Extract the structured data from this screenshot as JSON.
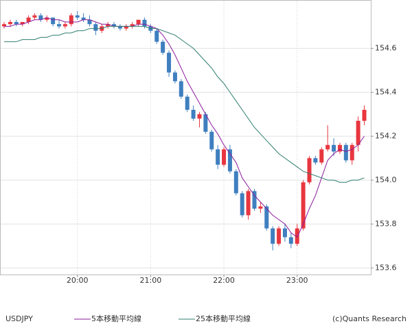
{
  "chart_data": {
    "type": "candlestick",
    "symbol": "USDJPY",
    "copyright": "(c)Quants Research",
    "categories": [
      null,
      null,
      null,
      null,
      null,
      null,
      null,
      null,
      null,
      null,
      null,
      null,
      "20:00",
      null,
      null,
      null,
      null,
      null,
      null,
      null,
      null,
      null,
      null,
      null,
      "21:00",
      null,
      null,
      null,
      null,
      null,
      null,
      null,
      null,
      null,
      null,
      null,
      "22:00",
      null,
      null,
      null,
      null,
      null,
      null,
      null,
      null,
      null,
      null,
      null,
      "23:00",
      null,
      null,
      null,
      null,
      null,
      null,
      null,
      null,
      null,
      null,
      null
    ],
    "open": [
      154.7,
      154.71,
      154.72,
      154.71,
      154.72,
      154.74,
      154.75,
      154.73,
      154.74,
      154.71,
      154.7,
      154.71,
      154.75,
      154.74,
      154.73,
      154.71,
      154.68,
      154.7,
      154.71,
      154.7,
      154.69,
      154.7,
      154.71,
      154.73,
      154.7,
      154.68,
      154.63,
      154.58,
      154.49,
      154.45,
      154.38,
      154.32,
      154.28,
      154.3,
      154.22,
      154.14,
      154.07,
      154.14,
      154.04,
      153.94,
      153.84,
      153.95,
      153.87,
      153.88,
      153.78,
      153.71,
      153.78,
      153.74,
      153.71,
      153.78,
      153.99,
      154.1,
      154.08,
      154.14,
      154.16,
      154.13,
      154.16,
      154.09,
      154.16,
      154.27
    ],
    "high": [
      154.72,
      154.73,
      154.73,
      154.72,
      154.75,
      154.76,
      154.76,
      154.75,
      154.74,
      154.73,
      154.72,
      154.76,
      154.77,
      154.76,
      154.75,
      154.72,
      154.71,
      154.72,
      154.72,
      154.71,
      154.71,
      154.72,
      154.73,
      154.74,
      154.71,
      154.69,
      154.64,
      154.59,
      154.5,
      154.46,
      154.39,
      154.34,
      154.31,
      154.31,
      154.23,
      154.16,
      154.15,
      154.16,
      154.05,
      153.95,
      153.96,
      153.96,
      153.9,
      153.89,
      153.79,
      153.79,
      153.8,
      153.76,
      153.8,
      154.0,
      154.11,
      154.11,
      154.15,
      154.25,
      154.19,
      154.17,
      154.17,
      154.17,
      154.29,
      154.34
    ],
    "low": [
      154.69,
      154.7,
      154.7,
      154.7,
      154.71,
      154.73,
      154.72,
      154.72,
      154.7,
      154.69,
      154.69,
      154.7,
      154.73,
      154.72,
      154.7,
      154.66,
      154.67,
      154.69,
      154.69,
      154.68,
      154.68,
      154.69,
      154.7,
      154.69,
      154.67,
      154.62,
      154.57,
      154.47,
      154.44,
      154.37,
      154.31,
      154.27,
      154.24,
      154.21,
      154.13,
      154.05,
      154.06,
      154.03,
      153.93,
      153.83,
      153.82,
      153.86,
      153.85,
      153.77,
      153.68,
      153.7,
      153.72,
      153.69,
      153.7,
      153.77,
      153.98,
      154.07,
      154.07,
      154.13,
      154.11,
      154.12,
      154.08,
      154.07,
      154.13,
      154.25
    ],
    "close": [
      154.71,
      154.72,
      154.71,
      154.72,
      154.74,
      154.75,
      154.73,
      154.74,
      154.71,
      154.7,
      154.71,
      154.75,
      154.74,
      154.73,
      154.71,
      154.68,
      154.7,
      154.71,
      154.7,
      154.69,
      154.7,
      154.71,
      154.73,
      154.7,
      154.68,
      154.63,
      154.58,
      154.49,
      154.45,
      154.38,
      154.32,
      154.28,
      154.3,
      154.22,
      154.14,
      154.07,
      154.14,
      154.04,
      153.94,
      153.84,
      153.95,
      153.87,
      153.88,
      153.78,
      153.71,
      153.78,
      153.74,
      153.71,
      153.78,
      153.99,
      154.1,
      154.08,
      154.14,
      154.16,
      154.13,
      154.16,
      154.09,
      154.16,
      154.27,
      154.32
    ],
    "up_color": "#e8363f",
    "down_color": "#3f7fbf",
    "series": [
      {
        "name": "5本移動平均線",
        "color": "#8b1a9b",
        "values": [
          154.7,
          154.7,
          154.71,
          154.71,
          154.72,
          154.73,
          154.73,
          154.74,
          154.73,
          154.73,
          154.72,
          154.72,
          154.72,
          154.73,
          154.73,
          154.72,
          154.71,
          154.71,
          154.7,
          154.7,
          154.7,
          154.7,
          154.71,
          154.71,
          154.7,
          154.69,
          154.66,
          154.62,
          154.57,
          154.51,
          154.45,
          154.4,
          154.35,
          154.3,
          154.25,
          154.21,
          154.16,
          154.12,
          154.08,
          154.01,
          153.97,
          153.93,
          153.9,
          153.87,
          153.84,
          153.82,
          153.8,
          153.76,
          153.74,
          153.8,
          153.87,
          153.93,
          154.01,
          154.09,
          154.12,
          154.14,
          154.13,
          154.14,
          154.16,
          154.2
        ]
      },
      {
        "name": "25本移動平均線",
        "color": "#2e7d6e",
        "values": [
          154.63,
          154.63,
          154.63,
          154.64,
          154.64,
          154.64,
          154.65,
          154.65,
          154.66,
          154.66,
          154.67,
          154.67,
          154.68,
          154.68,
          154.69,
          154.69,
          154.69,
          154.7,
          154.7,
          154.7,
          154.7,
          154.7,
          154.7,
          154.7,
          154.69,
          154.69,
          154.68,
          154.67,
          154.66,
          154.64,
          154.62,
          154.6,
          154.57,
          154.54,
          154.51,
          154.47,
          154.44,
          154.4,
          154.36,
          154.32,
          154.28,
          154.24,
          154.21,
          154.18,
          154.15,
          154.12,
          154.1,
          154.08,
          154.06,
          154.04,
          154.03,
          154.02,
          154.01,
          154.0,
          154.0,
          153.99,
          153.99,
          154.0,
          154.0,
          154.01
        ]
      }
    ],
    "ylim": [
      153.57,
      154.82
    ],
    "yticks": [
      153.6,
      153.8,
      {
        "value": 154,
        "label": "154.0"
      },
      154.2,
      154.4,
      154.6
    ],
    "grid": true
  }
}
